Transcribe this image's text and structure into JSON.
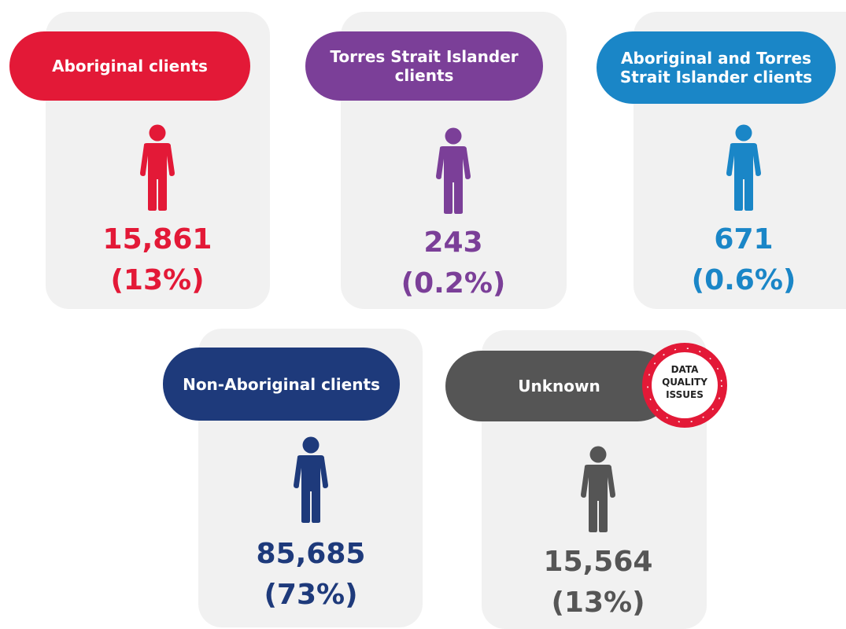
{
  "cards": [
    {
      "label": "Aboriginal clients",
      "count": "15,861",
      "percent": "(13%)",
      "color": "#e31937"
    },
    {
      "label": "Torres Strait Islander clients",
      "count": "243",
      "percent": "(0.2%)",
      "color": "#7b3f98"
    },
    {
      "label": "Aboriginal and Torres Strait Islander clients",
      "count": "671",
      "percent": "(0.6%)",
      "color": "#1a86c7"
    },
    {
      "label": "Non-Aboriginal clients",
      "count": "85,685",
      "percent": "(73%)",
      "color": "#1e3a7b"
    },
    {
      "label": "Unknown",
      "count": "15,564",
      "percent": "(13%)",
      "color": "#555555"
    }
  ],
  "badge": {
    "lines": [
      "DATA",
      "QUALITY",
      "ISSUES"
    ]
  }
}
